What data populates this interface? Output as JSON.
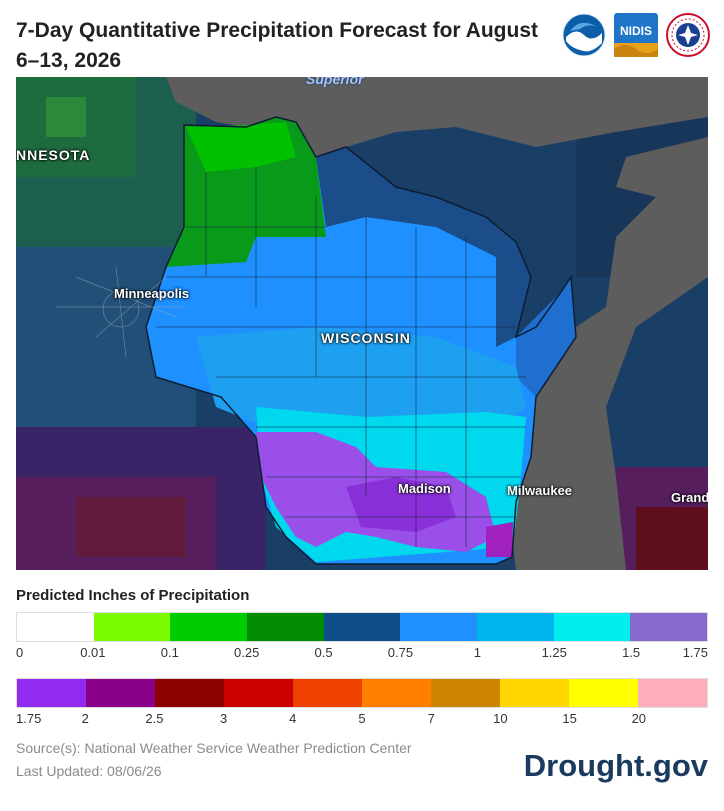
{
  "header": {
    "title": "7-Day Quantitative Precipitation Forecast for August 6–13, 2026",
    "logos": {
      "noaa": "NOAA",
      "nidis": "NIDIS",
      "nws": "National Weather Service"
    }
  },
  "map": {
    "labels": {
      "lake": "Superior",
      "state_mn": "NNESOTA",
      "state_wi": "WISCONSIN",
      "city_minneapolis": "Minneapolis",
      "city_madison": "Madison",
      "city_milwaukee": "Milwaukee",
      "city_grand": "Grand"
    }
  },
  "legend": {
    "title": "Predicted Inches of Precipitation",
    "row1": {
      "colors": [
        "#ffffff",
        "#7cfc00",
        "#00cd00",
        "#008b00",
        "#104e8b",
        "#1e90ff",
        "#00b2ee",
        "#00eeee",
        "#8968cd"
      ],
      "ticks": [
        "0",
        "0.01",
        "0.1",
        "0.25",
        "0.5",
        "0.75",
        "1",
        "1.25",
        "1.5",
        "1.75"
      ]
    },
    "row2": {
      "colors": [
        "#912cee",
        "#8b008b",
        "#8b0000",
        "#cd0000",
        "#ee4000",
        "#ff7f00",
        "#cd8500",
        "#ffd700",
        "#ffff00",
        "#ffaeb9"
      ],
      "ticks": [
        "1.75",
        "2",
        "2.5",
        "3",
        "4",
        "5",
        "7",
        "10",
        "15",
        "20"
      ]
    }
  },
  "footer": {
    "source": "Source(s): National Weather Service Weather Prediction Center",
    "updated": "Last Updated: 08/06/26",
    "brand": "Drought.gov"
  }
}
